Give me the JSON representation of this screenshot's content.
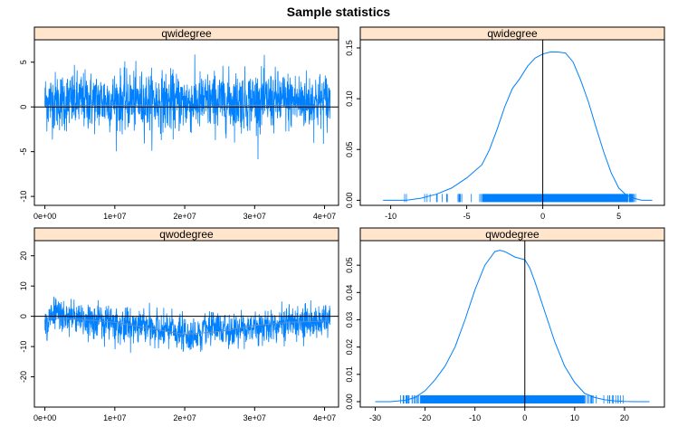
{
  "figure": {
    "title": "Sample statistics"
  },
  "colors": {
    "series": "#0080ff",
    "strip": "#ffe5cc",
    "axis": "#000000",
    "background": "#ffffff"
  },
  "chart_data": [
    {
      "id": "trace-qwidegree",
      "type": "line",
      "strip_label": "qwidegree",
      "xlim": [
        -1500000,
        42000000
      ],
      "ylim": [
        -11,
        7.5
      ],
      "x_ticks": [
        0,
        10000000,
        20000000,
        30000000,
        40000000
      ],
      "x_tick_labels": [
        "0e+00",
        "1e+07",
        "2e+07",
        "3e+07",
        "4e+07"
      ],
      "y_ticks": [
        -10,
        -5,
        0,
        5
      ],
      "y_tick_labels": [
        "-10",
        "-5",
        "0",
        "5"
      ],
      "reference_line": 0,
      "smooth": [
        [
          0,
          0.1
        ],
        [
          10000000,
          0.2
        ],
        [
          20000000,
          0.0
        ],
        [
          30000000,
          0.2
        ],
        [
          40500000,
          0.1
        ]
      ],
      "x_range": [
        0,
        40800000
      ],
      "series_profile": {
        "mean": 0.5,
        "sd": 2.5,
        "min": -10,
        "max": 6.2
      }
    },
    {
      "id": "density-qwidegree",
      "type": "area",
      "strip_label": "qwidegree",
      "xlim": [
        -12,
        8
      ],
      "ylim": [
        -0.005,
        0.158
      ],
      "x_ticks": [
        -10,
        -5,
        0,
        5
      ],
      "x_tick_labels": [
        "-10",
        "-5",
        "0",
        "5"
      ],
      "y_ticks": [
        0.0,
        0.05,
        0.1,
        0.15
      ],
      "y_tick_labels": [
        "0.00",
        "0.05",
        "0.10",
        "0.15"
      ],
      "reference_line": 0,
      "density": {
        "x": [
          -10.5,
          -9,
          -8,
          -7,
          -6,
          -5,
          -4,
          -3.5,
          -3,
          -2.5,
          -2,
          -1.5,
          -1,
          -0.5,
          0,
          0.5,
          1,
          1.5,
          2,
          2.5,
          3,
          3.5,
          4,
          4.5,
          5,
          5.5,
          6,
          6.5,
          7.2
        ],
        "y": [
          0.0,
          0.0,
          0.002,
          0.006,
          0.012,
          0.022,
          0.035,
          0.05,
          0.07,
          0.092,
          0.11,
          0.12,
          0.132,
          0.14,
          0.144,
          0.146,
          0.146,
          0.145,
          0.136,
          0.118,
          0.097,
          0.072,
          0.048,
          0.027,
          0.012,
          0.005,
          0.002,
          0.0,
          0.0
        ]
      },
      "rug_range": [
        -9.5,
        6.2
      ],
      "rug_dense": [
        -4,
        5.5
      ]
    },
    {
      "id": "trace-qwodegree",
      "type": "line",
      "strip_label": "qwodegree",
      "xlim": [
        -1500000,
        42000000
      ],
      "ylim": [
        -30,
        25
      ],
      "x_ticks": [
        0,
        10000000,
        20000000,
        30000000,
        40000000
      ],
      "x_tick_labels": [
        "0e+00",
        "1e+07",
        "2e+07",
        "3e+07",
        "4e+07"
      ],
      "y_ticks": [
        -20,
        -10,
        0,
        10,
        20
      ],
      "y_tick_labels": [
        "-20",
        "-10",
        "0",
        "10",
        "20"
      ],
      "reference_line": 0,
      "smooth": [
        [
          0,
          -0.5
        ],
        [
          5000000,
          -1
        ],
        [
          10000000,
          -2
        ],
        [
          15000000,
          -4
        ],
        [
          20000000,
          -6
        ],
        [
          25000000,
          -5
        ],
        [
          30000000,
          -3
        ],
        [
          35000000,
          -2
        ],
        [
          40500000,
          -1.5
        ]
      ],
      "x_range": [
        0,
        40800000
      ],
      "series_profile": {
        "mean": -2.5,
        "sd": 6,
        "min": -27,
        "max": 22
      }
    },
    {
      "id": "density-qwodegree",
      "type": "area",
      "strip_label": "qwodegree",
      "xlim": [
        -33,
        28
      ],
      "ylim": [
        -0.002,
        0.059
      ],
      "x_ticks": [
        -30,
        -20,
        -10,
        0,
        10,
        20
      ],
      "x_tick_labels": [
        "-30",
        "-20",
        "-10",
        "0",
        "10",
        "20"
      ],
      "y_ticks": [
        0.0,
        0.01,
        0.02,
        0.03,
        0.04,
        0.05
      ],
      "y_tick_labels": [
        "0.00",
        "0.01",
        "0.02",
        "0.03",
        "0.04",
        "0.05"
      ],
      "reference_line": 0,
      "density": {
        "x": [
          -30,
          -27,
          -24,
          -22,
          -20,
          -18,
          -16,
          -14,
          -12,
          -10,
          -8,
          -6,
          -5,
          -4,
          -2,
          0,
          1,
          2,
          4,
          6,
          8,
          10,
          12,
          14,
          16,
          18,
          20,
          22,
          25
        ],
        "y": [
          0.0,
          0.0,
          0.0005,
          0.0015,
          0.004,
          0.008,
          0.013,
          0.02,
          0.03,
          0.041,
          0.05,
          0.055,
          0.0555,
          0.055,
          0.053,
          0.052,
          0.049,
          0.044,
          0.033,
          0.022,
          0.013,
          0.007,
          0.003,
          0.0015,
          0.0007,
          0.0003,
          0.0001,
          0.0,
          0.0
        ]
      },
      "rug_range": [
        -25,
        20
      ],
      "rug_dense": [
        -21,
        12
      ]
    }
  ]
}
